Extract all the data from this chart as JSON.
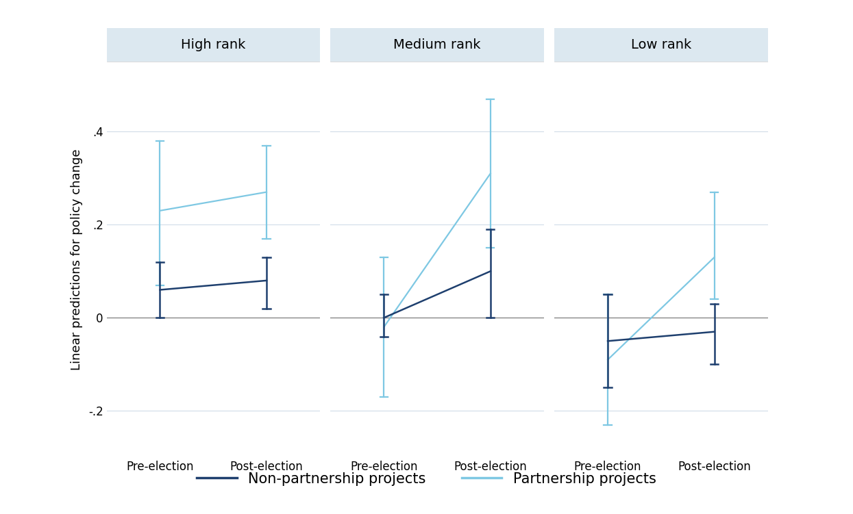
{
  "panels": [
    "High rank",
    "Medium rank",
    "Low rank"
  ],
  "x_labels": [
    "Pre-election",
    "Post-election"
  ],
  "x_positions": [
    0.25,
    0.75
  ],
  "non_partnership": {
    "High rank": {
      "y": [
        0.06,
        0.08
      ],
      "ci_lo": [
        0.0,
        0.02
      ],
      "ci_hi": [
        0.12,
        0.13
      ]
    },
    "Medium rank": {
      "y": [
        0.0,
        0.1
      ],
      "ci_lo": [
        -0.04,
        0.0
      ],
      "ci_hi": [
        0.05,
        0.19
      ]
    },
    "Low rank": {
      "y": [
        -0.05,
        -0.03
      ],
      "ci_lo": [
        -0.15,
        -0.1
      ],
      "ci_hi": [
        0.05,
        0.03
      ]
    }
  },
  "partnership": {
    "High rank": {
      "y": [
        0.23,
        0.27
      ],
      "ci_lo": [
        0.07,
        0.17
      ],
      "ci_hi": [
        0.38,
        0.37
      ]
    },
    "Medium rank": {
      "y": [
        -0.02,
        0.31
      ],
      "ci_lo": [
        -0.17,
        0.15
      ],
      "ci_hi": [
        0.13,
        0.47
      ]
    },
    "Low rank": {
      "y": [
        -0.09,
        0.13
      ],
      "ci_lo": [
        -0.23,
        0.04
      ],
      "ci_hi": [
        0.05,
        0.27
      ]
    }
  },
  "non_partnership_color": "#1e3f6e",
  "partnership_color": "#7ec8e3",
  "background_color": "#ffffff",
  "panel_header_color": "#dce8f0",
  "ylabel": "Linear predictions for policy change",
  "ylim": [
    -0.3,
    0.55
  ],
  "yticks": [
    -0.2,
    0.0,
    0.2,
    0.4
  ],
  "ytick_labels": [
    "-.2",
    "0",
    ".2",
    ".4"
  ],
  "grid_color": "#d0dce8",
  "zero_line_color": "#888888",
  "legend_labels": [
    "Non-partnership projects",
    "Partnership projects"
  ],
  "title_fontsize": 14,
  "axis_fontsize": 13,
  "tick_fontsize": 12,
  "legend_fontsize": 15
}
